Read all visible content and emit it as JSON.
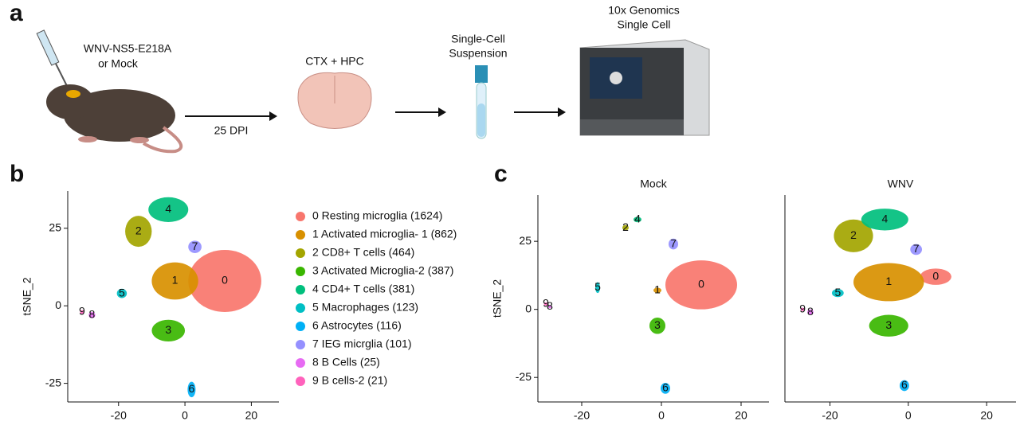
{
  "panel_a": {
    "letter": "a",
    "injection": [
      "WNV-NS5-E218A",
      "or Mock"
    ],
    "time": "25 DPI",
    "region": "CTX + HPC",
    "suspension": [
      "Single-Cell",
      "Suspension"
    ],
    "platform": [
      "10x Genomics",
      "Single Cell"
    ]
  },
  "panel_letters": [
    "b",
    "c"
  ],
  "legend": [
    "0 Resting microglia (1624)",
    "1 Activated microglia- 1 (862)",
    "2 CD8+ T cells (464)",
    "3 Activated Microglia-2 (387)",
    "4 CD4+ T cells (381)",
    "5 Macrophages (123)",
    "6 Astrocytes (116)",
    "7 IEG micrglia (101)",
    "8 B Cells (25)",
    "9 B cells-2 (21)"
  ],
  "chart_data": [
    {
      "type": "scatter",
      "ylabel": "tSNE_2",
      "xlim": [
        -35.3,
        28.3
      ],
      "ylim": [
        -31,
        37
      ],
      "xticks": [
        -20,
        0,
        20
      ],
      "yticks": [
        25,
        0,
        -25
      ],
      "series": [
        {
          "name": "0",
          "color": "#f8766d",
          "x": 12,
          "y": 8,
          "rx": 11,
          "ry": 10
        },
        {
          "name": "1",
          "color": "#d89000",
          "x": -3,
          "y": 8,
          "rx": 7,
          "ry": 6
        },
        {
          "name": "2",
          "color": "#a3a500",
          "x": -14,
          "y": 24,
          "rx": 4,
          "ry": 5
        },
        {
          "name": "3",
          "color": "#39b600",
          "x": -5,
          "y": -8,
          "rx": 5,
          "ry": 3.5
        },
        {
          "name": "4",
          "color": "#00bf7d",
          "x": -5,
          "y": 31,
          "rx": 6,
          "ry": 4
        },
        {
          "name": "5",
          "color": "#00bfc4",
          "x": -19,
          "y": 4,
          "rx": 1.5,
          "ry": 1.5
        },
        {
          "name": "6",
          "color": "#00b0f6",
          "x": 2,
          "y": -27,
          "rx": 1.2,
          "ry": 2.5
        },
        {
          "name": "7",
          "color": "#9590ff",
          "x": 3,
          "y": 19,
          "rx": 2,
          "ry": 2
        },
        {
          "name": "8",
          "color": "#e76bf3",
          "x": -28,
          "y": -3,
          "rx": 1,
          "ry": 1
        },
        {
          "name": "9",
          "color": "#ff62bc",
          "x": -31,
          "y": -2,
          "rx": 0.6,
          "ry": 0.6
        }
      ]
    },
    {
      "type": "scatter",
      "title": "Mock",
      "ylabel": "tSNE_2",
      "xlim": [
        -31,
        27
      ],
      "ylim": [
        -34,
        42
      ],
      "xticks": [
        -20,
        0,
        20
      ],
      "yticks": [
        25,
        0,
        -25
      ],
      "series": [
        {
          "name": "0",
          "color": "#f8766d",
          "x": 10,
          "y": 9,
          "rx": 9,
          "ry": 9
        },
        {
          "name": "1",
          "color": "#d89000",
          "x": -1,
          "y": 7,
          "rx": 1,
          "ry": 1
        },
        {
          "name": "2",
          "color": "#a3a500",
          "x": -9,
          "y": 30,
          "rx": 0.8,
          "ry": 1
        },
        {
          "name": "3",
          "color": "#39b600",
          "x": -1,
          "y": -6,
          "rx": 2,
          "ry": 3
        },
        {
          "name": "4",
          "color": "#00bf7d",
          "x": -6,
          "y": 33,
          "rx": 1,
          "ry": 1
        },
        {
          "name": "5",
          "color": "#00bfc4",
          "x": -16,
          "y": 8,
          "rx": 0.6,
          "ry": 2
        },
        {
          "name": "6",
          "color": "#00b0f6",
          "x": 1,
          "y": -29,
          "rx": 1.2,
          "ry": 2
        },
        {
          "name": "7",
          "color": "#9590ff",
          "x": 3,
          "y": 24,
          "rx": 1.2,
          "ry": 2
        },
        {
          "name": "8",
          "color": "#e76bf3",
          "x": -28,
          "y": 1,
          "rx": 0.3,
          "ry": 0.3
        },
        {
          "name": "9",
          "color": "#ff62bc",
          "x": -29,
          "y": 2,
          "rx": 0.5,
          "ry": 0.5
        }
      ]
    },
    {
      "type": "scatter",
      "title": "WNV",
      "xlim": [
        -31.5,
        27.5
      ],
      "ylim": [
        -34,
        42
      ],
      "xticks": [
        -20,
        0,
        20
      ],
      "series": [
        {
          "name": "0",
          "color": "#f8766d",
          "x": 7,
          "y": 12,
          "rx": 4,
          "ry": 3
        },
        {
          "name": "1",
          "color": "#d89000",
          "x": -5,
          "y": 10,
          "rx": 9,
          "ry": 7
        },
        {
          "name": "2",
          "color": "#a3a500",
          "x": -14,
          "y": 27,
          "rx": 5,
          "ry": 6
        },
        {
          "name": "3",
          "color": "#39b600",
          "x": -5,
          "y": -6,
          "rx": 5,
          "ry": 4
        },
        {
          "name": "4",
          "color": "#00bf7d",
          "x": -6,
          "y": 33,
          "rx": 6,
          "ry": 4
        },
        {
          "name": "5",
          "color": "#00bfc4",
          "x": -18,
          "y": 6,
          "rx": 1.5,
          "ry": 1.5
        },
        {
          "name": "6",
          "color": "#00b0f6",
          "x": -1,
          "y": -28,
          "rx": 1.2,
          "ry": 2
        },
        {
          "name": "7",
          "color": "#9590ff",
          "x": 2,
          "y": 22,
          "rx": 1.5,
          "ry": 2
        },
        {
          "name": "8",
          "color": "#e76bf3",
          "x": -25,
          "y": -1,
          "rx": 0.8,
          "ry": 1
        },
        {
          "name": "9",
          "color": "#ff62bc",
          "x": -27,
          "y": 0,
          "rx": 0.5,
          "ry": 0.5
        }
      ]
    }
  ]
}
